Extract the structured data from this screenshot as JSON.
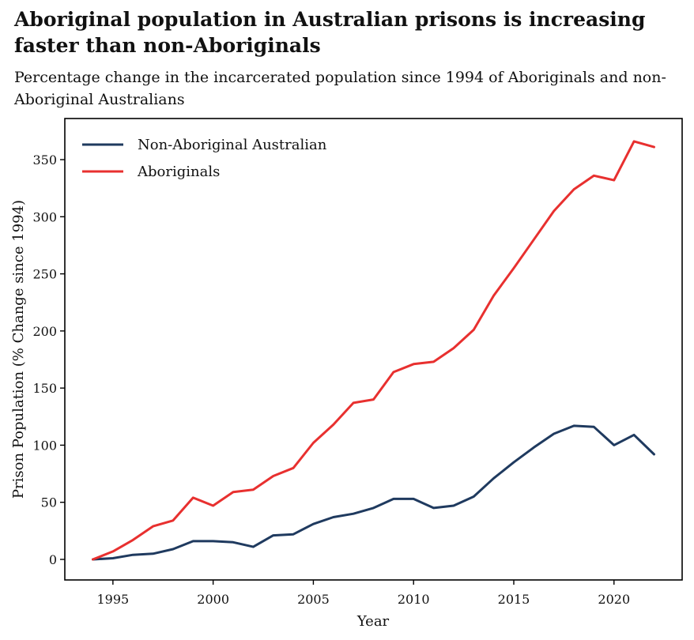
{
  "header": {
    "title": "Aboriginal population in Australian prisons is increasing faster than non-Aboriginals",
    "subtitle": "Percentage change in the incarcerated population since 1994 of Aboriginals and non-Aboriginal Australians"
  },
  "chart_data": {
    "type": "line",
    "title": "Aboriginal population in Australian prisons is increasing faster than non-Aboriginals",
    "subtitle": "Percentage change in the incarcerated population since 1994 of Aboriginals and non-Aboriginal Australians",
    "xlabel": "Year",
    "ylabel": "Prison Population (% Change since 1994)",
    "x": [
      1994,
      1995,
      1996,
      1997,
      1998,
      1999,
      2000,
      2001,
      2002,
      2003,
      2004,
      2005,
      2006,
      2007,
      2008,
      2009,
      2010,
      2011,
      2012,
      2013,
      2014,
      2015,
      2016,
      2017,
      2018,
      2019,
      2020,
      2021,
      2022
    ],
    "xlim": [
      1992.6,
      2023.4
    ],
    "ylim": [
      -18,
      386
    ],
    "xticks": [
      1995,
      2000,
      2005,
      2010,
      2015,
      2020
    ],
    "yticks": [
      0,
      50,
      100,
      150,
      200,
      250,
      300,
      350
    ],
    "grid": false,
    "legend_position": "top-left",
    "series": [
      {
        "name": "Non-Aboriginal Australian",
        "color": "#1f3a5f",
        "values": [
          0,
          1,
          4,
          5,
          9,
          16,
          16,
          15,
          11,
          21,
          22,
          31,
          37,
          40,
          45,
          53,
          53,
          45,
          47,
          55,
          71,
          85,
          98,
          110,
          117,
          116,
          100,
          109,
          92
        ]
      },
      {
        "name": "Aboriginals",
        "color": "#e8302f",
        "values": [
          0,
          7,
          17,
          29,
          34,
          54,
          47,
          59,
          61,
          73,
          80,
          102,
          118,
          137,
          140,
          164,
          171,
          173,
          185,
          201,
          231,
          255,
          280,
          305,
          324,
          336,
          332,
          366,
          361
        ]
      }
    ]
  }
}
